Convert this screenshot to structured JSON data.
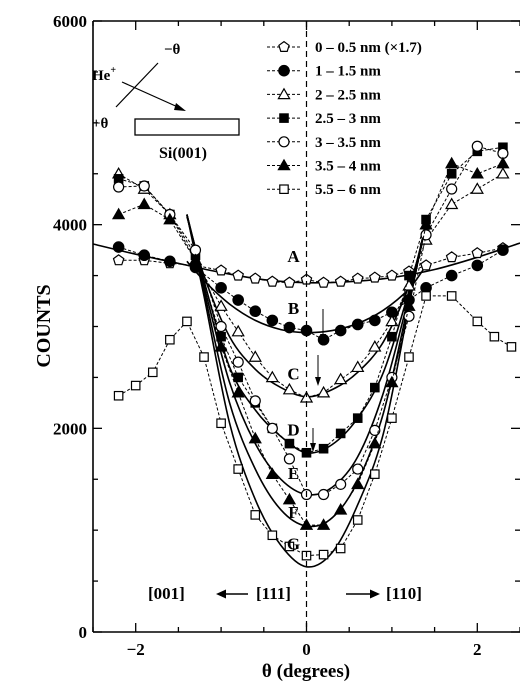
{
  "chart_data": {
    "type": "line",
    "xlabel": "θ (degrees)",
    "ylabel": "COUNTS",
    "xlim": [
      -2.5,
      2.5
    ],
    "ylim": [
      0,
      6000
    ],
    "x_ticks": [
      -2,
      0,
      2
    ],
    "x_tick_labels": [
      "−2",
      "0",
      "2"
    ],
    "y_ticks": [
      0,
      2000,
      4000,
      6000
    ],
    "y_tick_labels": [
      "0",
      "2000",
      "4000",
      "6000"
    ],
    "grid": false,
    "legend_position": "top-right",
    "series": [
      {
        "name": "0 – 0.5 nm (×1.7)",
        "marker": "pentagon-open",
        "x": [
          -2.2,
          -1.9,
          -1.6,
          -1.3,
          -1.0,
          -0.8,
          -0.6,
          -0.4,
          -0.2,
          0.0,
          0.2,
          0.4,
          0.6,
          0.8,
          1.0,
          1.2,
          1.4,
          1.7,
          2.0,
          2.3
        ],
        "y": [
          3650,
          3650,
          3620,
          3600,
          3550,
          3500,
          3470,
          3440,
          3430,
          3460,
          3430,
          3440,
          3470,
          3480,
          3500,
          3540,
          3600,
          3680,
          3720,
          3770
        ]
      },
      {
        "name": "1 – 1.5 nm",
        "marker": "circle-filled",
        "x": [
          -2.2,
          -1.9,
          -1.6,
          -1.3,
          -1.0,
          -0.8,
          -0.6,
          -0.4,
          -0.2,
          0.0,
          0.2,
          0.4,
          0.6,
          0.8,
          1.0,
          1.2,
          1.4,
          1.7,
          2.0,
          2.3
        ],
        "y": [
          3780,
          3700,
          3640,
          3580,
          3380,
          3260,
          3150,
          3060,
          2990,
          2960,
          2870,
          2960,
          3020,
          3060,
          3140,
          3260,
          3380,
          3500,
          3600,
          3750
        ]
      },
      {
        "name": "2 – 2.5 nm",
        "marker": "triangle-open",
        "x": [
          -2.2,
          -1.9,
          -1.6,
          -1.3,
          -1.0,
          -0.8,
          -0.6,
          -0.4,
          -0.2,
          0.0,
          0.2,
          0.4,
          0.6,
          0.8,
          1.0,
          1.2,
          1.4,
          1.7,
          2.0,
          2.3
        ],
        "y": [
          4500,
          4350,
          4100,
          3650,
          3200,
          2950,
          2700,
          2500,
          2380,
          2300,
          2350,
          2480,
          2600,
          2800,
          3050,
          3400,
          3850,
          4200,
          4350,
          4500
        ]
      },
      {
        "name": "2.5 – 3 nm",
        "marker": "square-filled",
        "x": [
          -2.2,
          -1.9,
          -1.6,
          -1.3,
          -1.0,
          -0.8,
          -0.6,
          -0.4,
          -0.2,
          0.0,
          0.2,
          0.4,
          0.6,
          0.8,
          1.0,
          1.2,
          1.4,
          1.7,
          2.0,
          2.3
        ],
        "y": [
          4450,
          4380,
          4100,
          3700,
          2900,
          2500,
          2250,
          2000,
          1850,
          1760,
          1800,
          1950,
          2100,
          2400,
          2900,
          3500,
          4050,
          4500,
          4720,
          4760
        ]
      },
      {
        "name": "3 – 3.5 nm",
        "marker": "circle-open",
        "x": [
          -2.2,
          -1.9,
          -1.6,
          -1.3,
          -1.0,
          -0.8,
          -0.6,
          -0.4,
          -0.2,
          0.0,
          0.2,
          0.4,
          0.6,
          0.8,
          1.0,
          1.2,
          1.4,
          1.7,
          2.0,
          2.3
        ],
        "y": [
          4370,
          4380,
          4100,
          3750,
          3000,
          2650,
          2270,
          2000,
          1700,
          1350,
          1350,
          1450,
          1600,
          1980,
          2500,
          3100,
          3900,
          4350,
          4770,
          4700
        ]
      },
      {
        "name": "3.5 – 4 nm",
        "marker": "triangle-filled",
        "x": [
          -2.2,
          -1.9,
          -1.6,
          -1.3,
          -1.0,
          -0.8,
          -0.6,
          -0.4,
          -0.2,
          0.0,
          0.2,
          0.4,
          0.6,
          0.8,
          1.0,
          1.2,
          1.4,
          1.7,
          2.0,
          2.3
        ],
        "y": [
          4100,
          4200,
          4050,
          3650,
          2800,
          2350,
          1900,
          1550,
          1300,
          1050,
          1050,
          1200,
          1450,
          1850,
          2450,
          3200,
          4000,
          4600,
          4500,
          4600
        ]
      },
      {
        "name": "5.5 – 6 nm",
        "marker": "square-open",
        "x": [
          -2.2,
          -2.0,
          -1.8,
          -1.6,
          -1.4,
          -1.2,
          -1.0,
          -0.8,
          -0.6,
          -0.4,
          -0.2,
          0.0,
          0.2,
          0.4,
          0.6,
          0.8,
          1.0,
          1.2,
          1.4,
          1.7,
          2.0,
          2.2,
          2.4
        ],
        "y": [
          2320,
          2420,
          2550,
          2870,
          3050,
          2700,
          2050,
          1600,
          1150,
          950,
          840,
          750,
          760,
          820,
          1100,
          1550,
          2100,
          2700,
          3300,
          3300,
          3050,
          2900,
          2800
        ]
      }
    ],
    "fit_curves": [
      {
        "label": "A",
        "x": [
          -2.5,
          -2.0,
          -1.5,
          -1.0,
          -0.5,
          0.0,
          0.5,
          1.0,
          1.5,
          2.0,
          2.5
        ],
        "y": [
          3810,
          3710,
          3620,
          3530,
          3460,
          3430,
          3440,
          3480,
          3560,
          3680,
          3820
        ]
      },
      {
        "label": "B",
        "x": [
          -1.4,
          -1.2,
          -0.9,
          -0.6,
          -0.3,
          0.0,
          0.3,
          0.6,
          0.9,
          1.2,
          1.4
        ],
        "y": [
          3640,
          3450,
          3220,
          3060,
          2970,
          2940,
          2960,
          3030,
          3160,
          3370,
          3600
        ]
      },
      {
        "label": "C",
        "x": [
          -1.4,
          -1.2,
          -0.9,
          -0.6,
          -0.3,
          0.0,
          0.3,
          0.6,
          0.9,
          1.2,
          1.4
        ],
        "y": [
          4080,
          3500,
          2900,
          2580,
          2400,
          2310,
          2380,
          2550,
          2850,
          3400,
          3950
        ]
      },
      {
        "label": "D",
        "x": [
          -1.4,
          -1.2,
          -0.9,
          -0.6,
          -0.3,
          0.0,
          0.3,
          0.6,
          0.9,
          1.2,
          1.4
        ],
        "y": [
          4100,
          3450,
          2600,
          2180,
          1920,
          1760,
          1840,
          2100,
          2550,
          3350,
          4000
        ]
      },
      {
        "label": "E",
        "x": [
          -1.4,
          -1.2,
          -0.9,
          -0.6,
          -0.3,
          0.0,
          0.3,
          0.6,
          0.9,
          1.2,
          1.4
        ],
        "y": [
          4100,
          3400,
          2450,
          1850,
          1500,
          1350,
          1420,
          1720,
          2350,
          3300,
          4000
        ]
      },
      {
        "label": "F",
        "x": [
          -1.4,
          -1.2,
          -0.9,
          -0.6,
          -0.3,
          0.0,
          0.3,
          0.6,
          0.9,
          1.2,
          1.4
        ],
        "y": [
          4100,
          3350,
          2250,
          1600,
          1200,
          1040,
          1120,
          1480,
          2150,
          3250,
          4000
        ]
      },
      {
        "label": "G",
        "x": [
          -1.4,
          -1.2,
          -0.9,
          -0.6,
          -0.3,
          0.0,
          0.3,
          0.6,
          0.9,
          1.2,
          1.4
        ],
        "y": [
          4100,
          3300,
          2050,
          1300,
          850,
          640,
          780,
          1250,
          1950,
          3200,
          4050
        ]
      }
    ],
    "annotations": {
      "direction_text": {
        "left": "[001]",
        "center": "[111]",
        "right": "[110]"
      },
      "inset": {
        "ion": "He",
        "charge": "+",
        "minus_theta": "−θ",
        "plus_theta": "+θ",
        "sample": "Si(001)"
      }
    }
  }
}
